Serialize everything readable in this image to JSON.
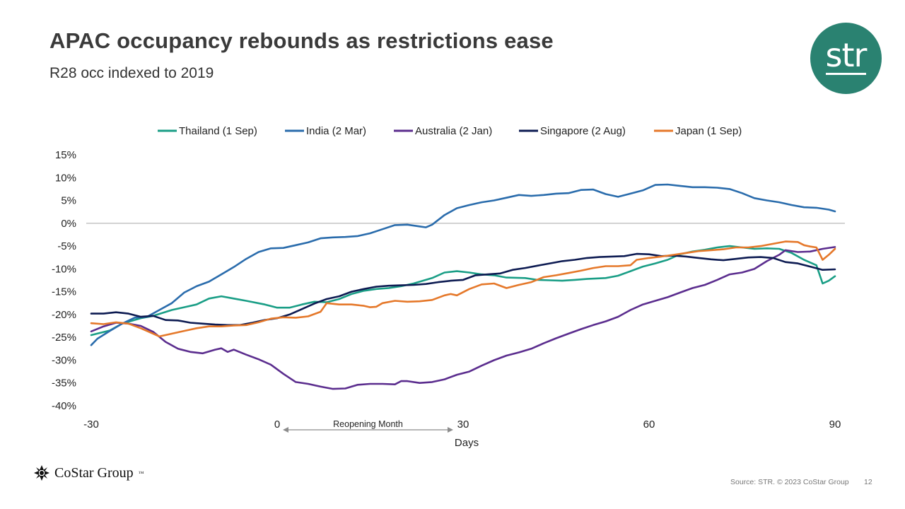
{
  "slide": {
    "title": "APAC occupancy rebounds as restrictions ease",
    "subtitle": "R28 occ indexed to 2019",
    "logo_text": "str",
    "brand_name": "CoStar Group",
    "brand_tm": "™",
    "source": "Source: STR. © 2023 CoStar Group",
    "page_number": "12",
    "brand_color": "#2a8271"
  },
  "chart_data": {
    "type": "line",
    "title": "",
    "xlabel": "Days",
    "ylabel": "",
    "xlim": [
      -30,
      90
    ],
    "ylim": [
      -40,
      15
    ],
    "x_ticks": [
      -30,
      0,
      30,
      60,
      90
    ],
    "y_ticks": [
      15,
      10,
      5,
      0,
      -5,
      -10,
      -15,
      -20,
      -25,
      -30,
      -35,
      -40
    ],
    "y_tick_labels": [
      "15%",
      "10%",
      "5%",
      "0%",
      "-5%",
      "-10%",
      "-15%",
      "-20%",
      "-25%",
      "-30%",
      "-35%",
      "-40%"
    ],
    "grid": false,
    "legend_position": "top",
    "annotation": {
      "label": "Reopening Month",
      "x_start": 0,
      "x_end": 30
    },
    "series": [
      {
        "name": "Thailand (1 Sep)",
        "color": "#1a9e86",
        "points": [
          [
            -30,
            -24.5
          ],
          [
            -27,
            -23.5
          ],
          [
            -25,
            -22
          ],
          [
            -22,
            -20.8
          ],
          [
            -20,
            -20.3
          ],
          [
            -17,
            -19
          ],
          [
            -15,
            -18.4
          ],
          [
            -13,
            -17.8
          ],
          [
            -11,
            -16.5
          ],
          [
            -9,
            -16
          ],
          [
            -7,
            -16.5
          ],
          [
            -5,
            -17
          ],
          [
            -2,
            -17.8
          ],
          [
            0,
            -18.5
          ],
          [
            2,
            -18.5
          ],
          [
            4,
            -17.8
          ],
          [
            6,
            -17.2
          ],
          [
            8,
            -17.3
          ],
          [
            10,
            -16.6
          ],
          [
            12,
            -15.5
          ],
          [
            14,
            -14.8
          ],
          [
            16,
            -14.4
          ],
          [
            18,
            -14.2
          ],
          [
            20,
            -13.8
          ],
          [
            22,
            -13.2
          ],
          [
            25,
            -12
          ],
          [
            27,
            -10.8
          ],
          [
            29,
            -10.5
          ],
          [
            31,
            -10.8
          ],
          [
            33,
            -11.2
          ],
          [
            35,
            -11.4
          ],
          [
            37,
            -11.9
          ],
          [
            40,
            -12
          ],
          [
            42,
            -12.4
          ],
          [
            44,
            -12.5
          ],
          [
            46,
            -12.6
          ],
          [
            48,
            -12.4
          ],
          [
            50,
            -12.2
          ],
          [
            53,
            -12
          ],
          [
            55,
            -11.5
          ],
          [
            57,
            -10.5
          ],
          [
            59,
            -9.5
          ],
          [
            61,
            -8.8
          ],
          [
            63,
            -8
          ],
          [
            65,
            -6.8
          ],
          [
            67,
            -6.2
          ],
          [
            69,
            -5.8
          ],
          [
            71,
            -5.3
          ],
          [
            73,
            -5
          ],
          [
            75,
            -5.3
          ],
          [
            77,
            -5.6
          ],
          [
            79,
            -5.5
          ],
          [
            81,
            -5.6
          ],
          [
            83,
            -6.5
          ],
          [
            85,
            -8
          ],
          [
            87,
            -9.2
          ],
          [
            88,
            -13.2
          ],
          [
            89,
            -12.6
          ],
          [
            90,
            -11.6
          ]
        ]
      },
      {
        "name": "India (2 Mar)",
        "color": "#2a6cac",
        "points": [
          [
            -30,
            -26.7
          ],
          [
            -29,
            -25.3
          ],
          [
            -27,
            -23.6
          ],
          [
            -25,
            -22
          ],
          [
            -23,
            -20.7
          ],
          [
            -21,
            -20.5
          ],
          [
            -19,
            -19
          ],
          [
            -17,
            -17.5
          ],
          [
            -15,
            -15.2
          ],
          [
            -13,
            -13.8
          ],
          [
            -11,
            -12.8
          ],
          [
            -9,
            -11.2
          ],
          [
            -7,
            -9.6
          ],
          [
            -5,
            -7.8
          ],
          [
            -3,
            -6.3
          ],
          [
            -1,
            -5.5
          ],
          [
            1,
            -5.4
          ],
          [
            3,
            -4.8
          ],
          [
            5,
            -4.2
          ],
          [
            7,
            -3.3
          ],
          [
            9,
            -3.1
          ],
          [
            11,
            -3
          ],
          [
            13,
            -2.8
          ],
          [
            15,
            -2.2
          ],
          [
            17,
            -1.3
          ],
          [
            19,
            -0.4
          ],
          [
            21,
            -0.3
          ],
          [
            23,
            -0.7
          ],
          [
            24,
            -0.9
          ],
          [
            25,
            -0.3
          ],
          [
            27,
            1.8
          ],
          [
            29,
            3.3
          ],
          [
            31,
            4
          ],
          [
            33,
            4.6
          ],
          [
            35,
            5
          ],
          [
            37,
            5.6
          ],
          [
            39,
            6.2
          ],
          [
            41,
            6
          ],
          [
            43,
            6.2
          ],
          [
            45,
            6.5
          ],
          [
            47,
            6.6
          ],
          [
            49,
            7.3
          ],
          [
            51,
            7.4
          ],
          [
            53,
            6.4
          ],
          [
            55,
            5.8
          ],
          [
            57,
            6.5
          ],
          [
            59,
            7.2
          ],
          [
            61,
            8.4
          ],
          [
            63,
            8.5
          ],
          [
            65,
            8.2
          ],
          [
            67,
            7.9
          ],
          [
            69,
            7.9
          ],
          [
            71,
            7.8
          ],
          [
            73,
            7.5
          ],
          [
            75,
            6.6
          ],
          [
            77,
            5.5
          ],
          [
            79,
            5
          ],
          [
            81,
            4.6
          ],
          [
            83,
            4
          ],
          [
            85,
            3.5
          ],
          [
            87,
            3.4
          ],
          [
            89,
            3
          ],
          [
            90,
            2.6
          ]
        ]
      },
      {
        "name": "Australia (2 Jan)",
        "color": "#5b2d8e",
        "points": [
          [
            -30,
            -23.7
          ],
          [
            -28,
            -22.6
          ],
          [
            -26,
            -21.8
          ],
          [
            -24,
            -22
          ],
          [
            -22,
            -22.5
          ],
          [
            -20,
            -23.8
          ],
          [
            -18,
            -26
          ],
          [
            -16,
            -27.5
          ],
          [
            -14,
            -28.2
          ],
          [
            -12,
            -28.5
          ],
          [
            -10,
            -27.7
          ],
          [
            -9,
            -27.4
          ],
          [
            -8,
            -28.2
          ],
          [
            -7,
            -27.7
          ],
          [
            -5,
            -28.8
          ],
          [
            -3,
            -29.8
          ],
          [
            -1,
            -31
          ],
          [
            1,
            -33
          ],
          [
            3,
            -34.8
          ],
          [
            5,
            -35.2
          ],
          [
            7,
            -35.8
          ],
          [
            9,
            -36.3
          ],
          [
            11,
            -36.2
          ],
          [
            13,
            -35.4
          ],
          [
            15,
            -35.2
          ],
          [
            17,
            -35.2
          ],
          [
            19,
            -35.3
          ],
          [
            20,
            -34.6
          ],
          [
            21,
            -34.6
          ],
          [
            23,
            -35
          ],
          [
            25,
            -34.8
          ],
          [
            27,
            -34.2
          ],
          [
            29,
            -33.2
          ],
          [
            31,
            -32.5
          ],
          [
            33,
            -31.2
          ],
          [
            35,
            -30
          ],
          [
            37,
            -29
          ],
          [
            39,
            -28.3
          ],
          [
            41,
            -27.5
          ],
          [
            43,
            -26.3
          ],
          [
            45,
            -25.2
          ],
          [
            47,
            -24.2
          ],
          [
            49,
            -23.2
          ],
          [
            51,
            -22.3
          ],
          [
            53,
            -21.5
          ],
          [
            55,
            -20.5
          ],
          [
            57,
            -19
          ],
          [
            59,
            -17.8
          ],
          [
            61,
            -17
          ],
          [
            63,
            -16.2
          ],
          [
            65,
            -15.2
          ],
          [
            67,
            -14.2
          ],
          [
            69,
            -13.5
          ],
          [
            71,
            -12.4
          ],
          [
            73,
            -11.2
          ],
          [
            75,
            -10.8
          ],
          [
            77,
            -10
          ],
          [
            79,
            -8.3
          ],
          [
            81,
            -6.9
          ],
          [
            82,
            -5.9
          ],
          [
            84,
            -6.3
          ],
          [
            86,
            -6.2
          ],
          [
            88,
            -5.6
          ],
          [
            90,
            -5.2
          ]
        ]
      },
      {
        "name": "Singapore (2 Aug)",
        "color": "#0d1b52",
        "points": [
          [
            -30,
            -19.8
          ],
          [
            -28,
            -19.8
          ],
          [
            -26,
            -19.5
          ],
          [
            -24,
            -19.8
          ],
          [
            -22,
            -20.5
          ],
          [
            -20,
            -20.3
          ],
          [
            -18,
            -21.2
          ],
          [
            -16,
            -21.3
          ],
          [
            -14,
            -21.8
          ],
          [
            -12,
            -22
          ],
          [
            -10,
            -22.2
          ],
          [
            -8,
            -22.3
          ],
          [
            -6,
            -22.3
          ],
          [
            -4,
            -21.8
          ],
          [
            -2,
            -21.2
          ],
          [
            0,
            -20.8
          ],
          [
            2,
            -20
          ],
          [
            4,
            -18.8
          ],
          [
            6,
            -17.6
          ],
          [
            8,
            -16.6
          ],
          [
            10,
            -16
          ],
          [
            12,
            -15
          ],
          [
            14,
            -14.4
          ],
          [
            16,
            -13.9
          ],
          [
            18,
            -13.7
          ],
          [
            20,
            -13.6
          ],
          [
            22,
            -13.5
          ],
          [
            24,
            -13.3
          ],
          [
            26,
            -12.9
          ],
          [
            28,
            -12.6
          ],
          [
            30,
            -12.4
          ],
          [
            32,
            -11.4
          ],
          [
            34,
            -11.2
          ],
          [
            36,
            -11
          ],
          [
            38,
            -10.2
          ],
          [
            40,
            -9.8
          ],
          [
            42,
            -9.3
          ],
          [
            44,
            -8.8
          ],
          [
            46,
            -8.3
          ],
          [
            48,
            -8
          ],
          [
            50,
            -7.6
          ],
          [
            52,
            -7.4
          ],
          [
            54,
            -7.3
          ],
          [
            56,
            -7.2
          ],
          [
            58,
            -6.7
          ],
          [
            60,
            -6.8
          ],
          [
            62,
            -7.2
          ],
          [
            64,
            -7.1
          ],
          [
            66,
            -7.3
          ],
          [
            68,
            -7.6
          ],
          [
            70,
            -7.9
          ],
          [
            72,
            -8.1
          ],
          [
            74,
            -7.8
          ],
          [
            76,
            -7.5
          ],
          [
            78,
            -7.4
          ],
          [
            80,
            -7.6
          ],
          [
            82,
            -8.5
          ],
          [
            84,
            -8.8
          ],
          [
            86,
            -9.5
          ],
          [
            88,
            -10.2
          ],
          [
            90,
            -10.1
          ]
        ]
      },
      {
        "name": "Japan (1 Sep)",
        "color": "#e5782a",
        "points": [
          [
            -30,
            -21.9
          ],
          [
            -28,
            -22.1
          ],
          [
            -26,
            -21.7
          ],
          [
            -24,
            -22
          ],
          [
            -22,
            -23
          ],
          [
            -20,
            -24.2
          ],
          [
            -19,
            -24.8
          ],
          [
            -17,
            -24.2
          ],
          [
            -15,
            -23.6
          ],
          [
            -13,
            -23
          ],
          [
            -11,
            -22.6
          ],
          [
            -9,
            -22.6
          ],
          [
            -7,
            -22.4
          ],
          [
            -5,
            -22.3
          ],
          [
            -3,
            -21.7
          ],
          [
            -1,
            -20.9
          ],
          [
            1,
            -20.6
          ],
          [
            3,
            -20.7
          ],
          [
            5,
            -20.4
          ],
          [
            7,
            -19.4
          ],
          [
            8,
            -17.5
          ],
          [
            10,
            -17.8
          ],
          [
            12,
            -17.8
          ],
          [
            14,
            -18.1
          ],
          [
            15,
            -18.4
          ],
          [
            16,
            -18.3
          ],
          [
            17,
            -17.5
          ],
          [
            19,
            -17
          ],
          [
            21,
            -17.2
          ],
          [
            23,
            -17.1
          ],
          [
            25,
            -16.8
          ],
          [
            27,
            -15.8
          ],
          [
            28,
            -15.5
          ],
          [
            29,
            -15.8
          ],
          [
            31,
            -14.4
          ],
          [
            33,
            -13.4
          ],
          [
            35,
            -13.2
          ],
          [
            37,
            -14.2
          ],
          [
            39,
            -13.5
          ],
          [
            41,
            -12.9
          ],
          [
            43,
            -11.8
          ],
          [
            45,
            -11.4
          ],
          [
            47,
            -10.9
          ],
          [
            49,
            -10.4
          ],
          [
            51,
            -9.8
          ],
          [
            53,
            -9.4
          ],
          [
            55,
            -9.4
          ],
          [
            57,
            -9.2
          ],
          [
            58,
            -8
          ],
          [
            60,
            -7.6
          ],
          [
            62,
            -7.3
          ],
          [
            64,
            -6.9
          ],
          [
            66,
            -6.5
          ],
          [
            68,
            -6.1
          ],
          [
            70,
            -5.9
          ],
          [
            72,
            -5.7
          ],
          [
            74,
            -5.3
          ],
          [
            76,
            -5.3
          ],
          [
            78,
            -5
          ],
          [
            80,
            -4.5
          ],
          [
            82,
            -4
          ],
          [
            84,
            -4.1
          ],
          [
            85,
            -4.8
          ],
          [
            86,
            -5.1
          ],
          [
            87,
            -5.3
          ],
          [
            88,
            -8
          ],
          [
            89,
            -6.9
          ],
          [
            90,
            -5.6
          ]
        ]
      }
    ]
  }
}
